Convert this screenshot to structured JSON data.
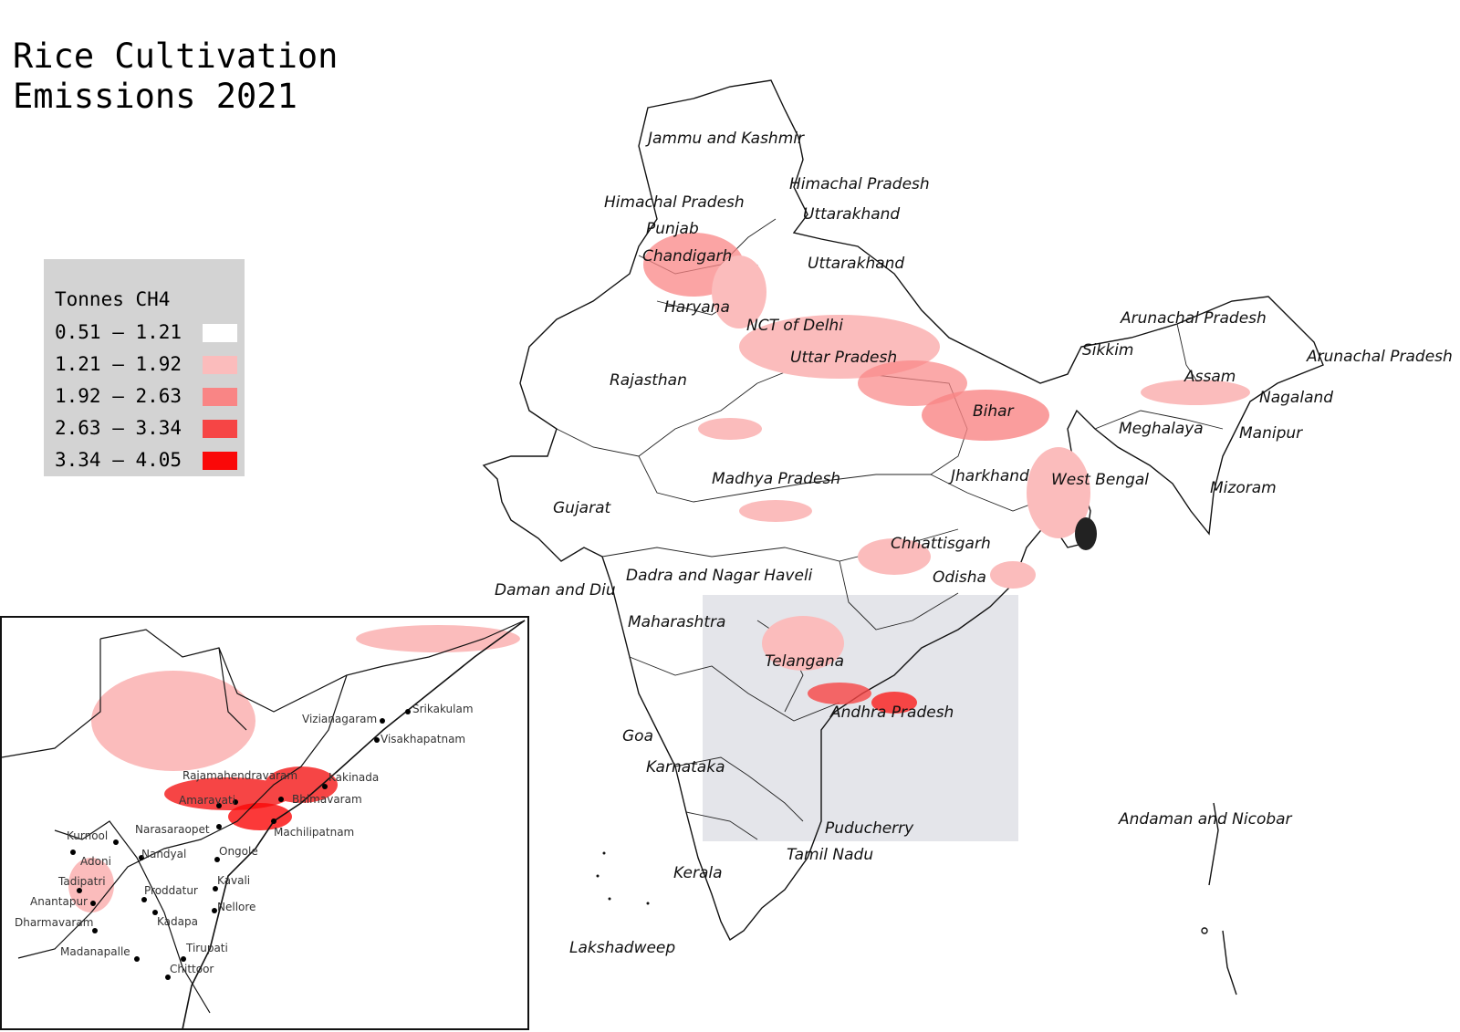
{
  "title": "Rice Cultivation\nEmissions 2021",
  "legend": {
    "title": "Tonnes CH4",
    "classes": [
      {
        "label": "0.51 – 1.21",
        "color": "#ffffff"
      },
      {
        "label": "1.21 – 1.92",
        "color": "#fbbcbc"
      },
      {
        "label": "1.92 – 2.63",
        "color": "#f98585"
      },
      {
        "label": "2.63 – 3.34",
        "color": "#f64545"
      },
      {
        "label": "3.34 – 4.05",
        "color": "#fa0808"
      }
    ]
  },
  "state_labels": [
    "Jammu and Kashmir",
    "Himachal Pradesh",
    "Himachal Pradesh",
    "Punjab",
    "Uttarakhand",
    "Chandigarh",
    "Uttarakhand",
    "Haryana",
    "NCT of Delhi",
    "Arunachal Pradesh",
    "Sikkim",
    "Arunachal Pradesh",
    "Rajasthan",
    "Uttar Pradesh",
    "Assam",
    "Nagaland",
    "Bihar",
    "Meghalaya",
    "Manipur",
    "Madhya Pradesh",
    "Jharkhand",
    "West Bengal",
    "Mizoram",
    "Gujarat",
    "Chhattisgarh",
    "Daman and Diu",
    "Dadra and Nagar Haveli",
    "Odisha",
    "Maharashtra",
    "Telangana",
    "Andhra Pradesh",
    "Goa",
    "Karnataka",
    "Andaman and Nicobar",
    "Puducherry",
    "Tamil Nadu",
    "Kerala",
    "Lakshadweep"
  ],
  "inset_cities": [
    "Srikakulam",
    "Vizianagaram",
    "Visakhapatnam",
    "Kakinada",
    "Rajamahendravaram",
    "Bhimavaram",
    "Amaravati",
    "Machilipatnam",
    "Kurnool",
    "Narasaraopet",
    "Nandyal",
    "Ongole",
    "Adoni",
    "Tadipatri",
    "Kavali",
    "Proddatur",
    "Anantapur",
    "Nellore",
    "Dharmavaram",
    "Kadapa",
    "Madanapalle",
    "Tirupati",
    "Chittoor"
  ],
  "colors": {
    "highlight_box": "#e4e5ea",
    "border": "#111111"
  }
}
